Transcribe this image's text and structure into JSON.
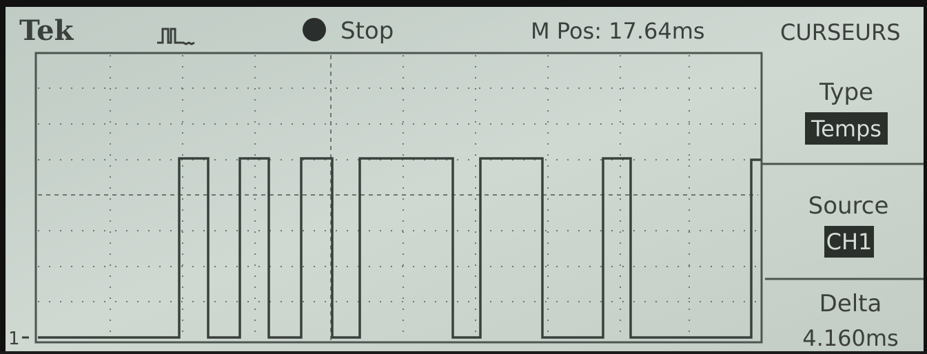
{
  "header": {
    "brand": "Tek",
    "status": "Stop",
    "position": "M Pos: 17.64ms",
    "menu_title": "CURSEURS"
  },
  "menu": [
    {
      "label": "Type",
      "value": "Temps"
    },
    {
      "label": "Source",
      "value": "CH1"
    },
    {
      "label": "Delta",
      "value": "4.160ms"
    }
  ],
  "channel_marker": "1"
}
